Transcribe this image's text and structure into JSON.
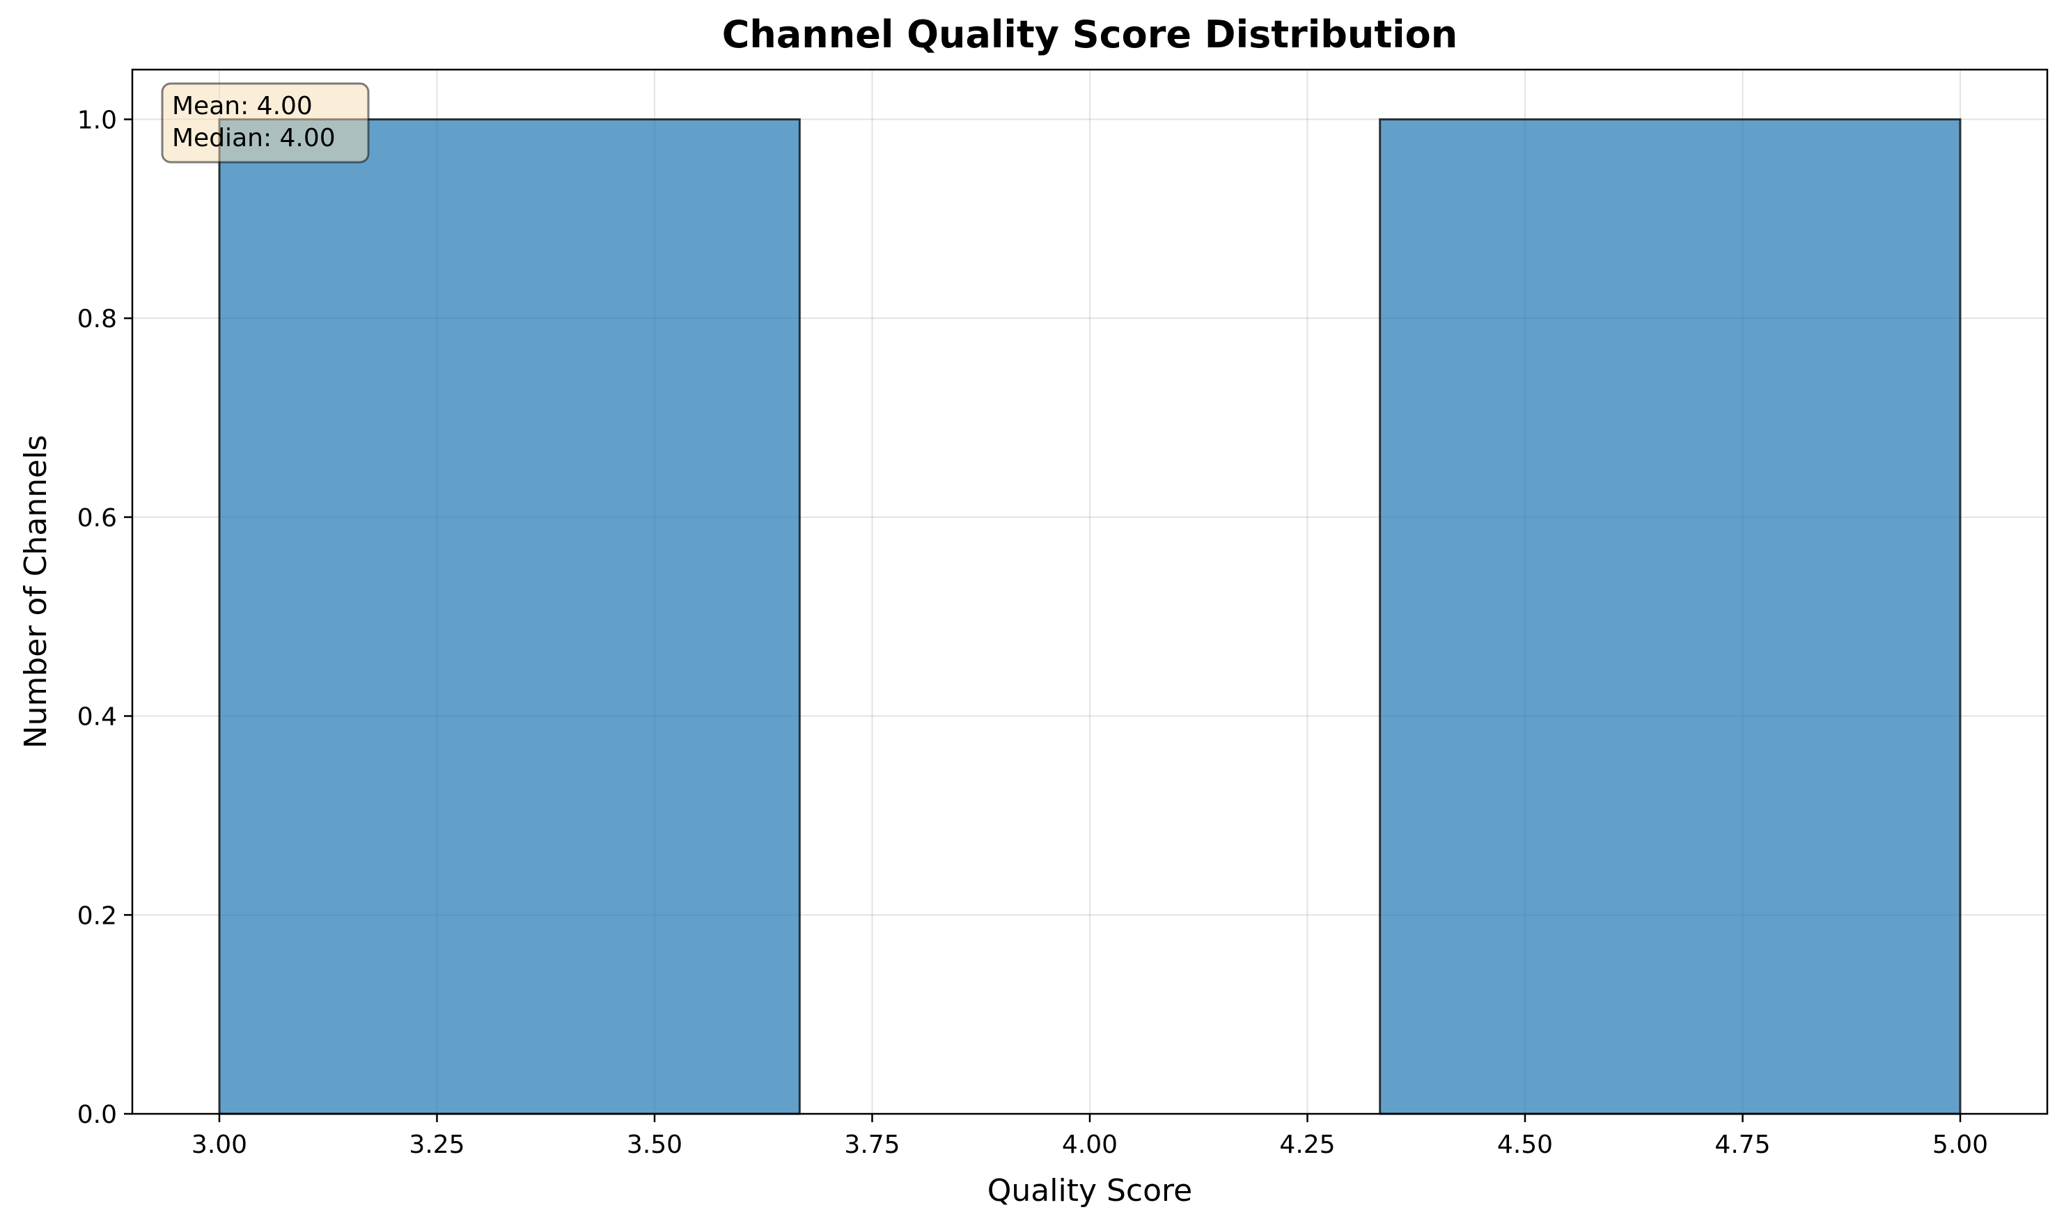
{
  "chart_data": {
    "type": "bar",
    "title": "Channel Quality Score Distribution",
    "xlabel": "Quality Score",
    "ylabel": "Number of Channels",
    "xlim": [
      2.9,
      5.1
    ],
    "ylim": [
      0,
      1.05
    ],
    "xticks": [
      3.0,
      3.25,
      3.5,
      3.75,
      4.0,
      4.25,
      4.5,
      4.75,
      5.0
    ],
    "xtick_labels": [
      "3.00",
      "3.25",
      "3.50",
      "3.75",
      "4.00",
      "4.25",
      "4.50",
      "4.75",
      "5.00"
    ],
    "yticks": [
      0.0,
      0.2,
      0.4,
      0.6,
      0.8,
      1.0
    ],
    "ytick_labels": [
      "0.0",
      "0.2",
      "0.4",
      "0.6",
      "0.8",
      "1.0"
    ],
    "bins": [
      {
        "start": 3.0,
        "end": 3.6667,
        "count": 1
      },
      {
        "start": 3.6667,
        "end": 4.3333,
        "count": 0
      },
      {
        "start": 4.3333,
        "end": 5.0,
        "count": 1
      }
    ],
    "grid": true,
    "bar_color": "#1f77b4",
    "bar_edge_color": "#000000",
    "annotation": {
      "lines": [
        "Mean: 4.00",
        "Median: 4.00"
      ],
      "placement": "top-left",
      "box_color": "#f5deb3"
    }
  }
}
